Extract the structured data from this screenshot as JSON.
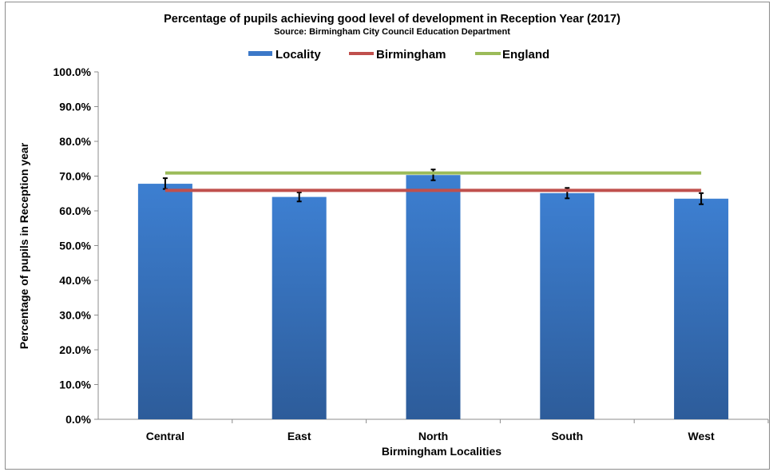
{
  "chart_data": {
    "type": "bar",
    "title": "Percentage of pupils achieving good level of development in Reception Year (2017)",
    "subtitle": "Source: Birmingham City Council Education Department",
    "xlabel": "Birmingham Localities",
    "ylabel": "Percentage of pupils in Reception  year",
    "categories": [
      "Central",
      "East",
      "North",
      "South",
      "West"
    ],
    "y_ticks": [
      "0.0%",
      "10.0%",
      "20.0%",
      "30.0%",
      "40.0%",
      "50.0%",
      "60.0%",
      "70.0%",
      "80.0%",
      "90.0%",
      "100.0%"
    ],
    "ylim": [
      0,
      100
    ],
    "grid": false,
    "legend_position": "top",
    "series": [
      {
        "name": "Locality",
        "kind": "bar",
        "values": [
          67.8,
          64.0,
          70.3,
          65.1,
          63.5
        ],
        "error_low": [
          66.3,
          62.7,
          68.8,
          63.6,
          61.9
        ],
        "error_high": [
          69.4,
          65.3,
          71.9,
          66.6,
          65.1
        ],
        "color": "#3c78c8"
      },
      {
        "name": "Birmingham",
        "kind": "line",
        "value": 65.9,
        "color": "#c0504d"
      },
      {
        "name": "England",
        "kind": "line",
        "value": 70.9,
        "color": "#9bbb59"
      }
    ]
  }
}
